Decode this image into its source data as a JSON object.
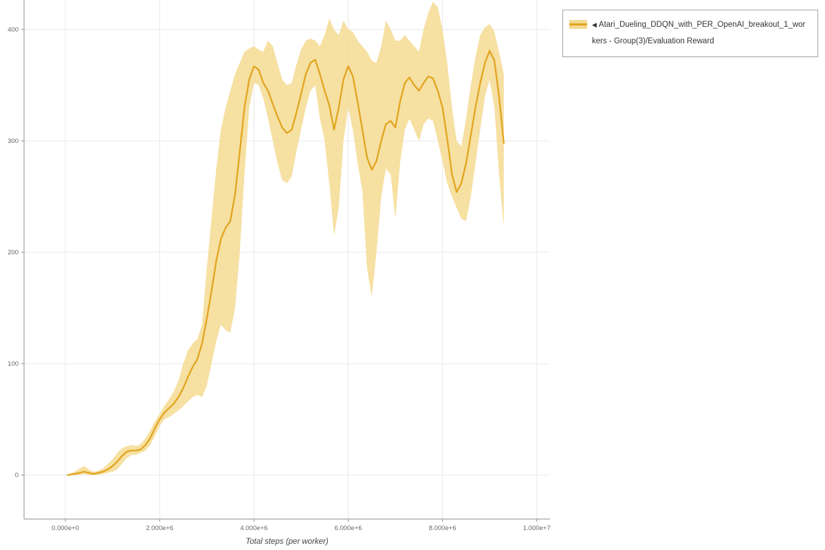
{
  "legend": {
    "marker": "◀",
    "label": "Atari_Dueling_DDQN_with_PER_OpenAI_breakout_1_workers - Group(3)/Evaluation Reward"
  },
  "colors": {
    "line": "#e2a41f",
    "band": "#f4da92",
    "grid": "#e8e8e8",
    "axis": "#8c8c8c",
    "tick_text": "#666666"
  },
  "chart_data": {
    "type": "line",
    "title": "",
    "xlabel": "Total steps (per worker)",
    "ylabel": "",
    "xlim": [
      -875000,
      10280000
    ],
    "ylim": [
      -39.5,
      426.5
    ],
    "grid": true,
    "legend_position": "top-right-outside",
    "x_ticks": [
      {
        "value": 0,
        "label": "0.000e+0"
      },
      {
        "value": 2000000,
        "label": "2.000e+6"
      },
      {
        "value": 4000000,
        "label": "4.000e+6"
      },
      {
        "value": 6000000,
        "label": "6.000e+6"
      },
      {
        "value": 8000000,
        "label": "8.000e+6"
      },
      {
        "value": 10000000,
        "label": "1.000e+7"
      }
    ],
    "y_ticks": [
      {
        "value": 0,
        "label": "0"
      },
      {
        "value": 100,
        "label": "100"
      },
      {
        "value": 200,
        "label": "200"
      },
      {
        "value": 300,
        "label": "300"
      },
      {
        "value": 400,
        "label": "400"
      }
    ],
    "x": [
      50000.0,
      200000.0,
      300000.0,
      400000.0,
      500000.0,
      600000.0,
      700000.0,
      800000.0,
      900000.0,
      1000000.0,
      1100000.0,
      1200000.0,
      1300000.0,
      1400000.0,
      1500000.0,
      1600000.0,
      1700000.0,
      1800000.0,
      1900000.0,
      2000000.0,
      2100000.0,
      2200000.0,
      2300000.0,
      2400000.0,
      2500000.0,
      2600000.0,
      2700000.0,
      2800000.0,
      2900000.0,
      3000000.0,
      3100000.0,
      3200000.0,
      3300000.0,
      3400000.0,
      3500000.0,
      3600000.0,
      3700000.0,
      3800000.0,
      3900000.0,
      4000000.0,
      4100000.0,
      4200000.0,
      4300000.0,
      4400000.0,
      4500000.0,
      4600000.0,
      4700000.0,
      4800000.0,
      4900000.0,
      5000000.0,
      5100000.0,
      5200000.0,
      5300000.0,
      5400000.0,
      5500000.0,
      5600000.0,
      5700000.0,
      5800000.0,
      5900000.0,
      6000000.0,
      6100000.0,
      6200000.0,
      6300000.0,
      6400000.0,
      6500000.0,
      6600000.0,
      6700000.0,
      6800000.0,
      6900000.0,
      7000000.0,
      7100000.0,
      7200000.0,
      7300000.0,
      7400000.0,
      7500000.0,
      7600000.0,
      7700000.0,
      7800000.0,
      7900000.0,
      8000000.0,
      8100000.0,
      8200000.0,
      8300000.0,
      8400000.0,
      8500000.0,
      8600000.0,
      8700000.0,
      8800000.0,
      8900000.0,
      9000000.0,
      9100000.0,
      9200000.0,
      9300000.0
    ],
    "series": [
      {
        "name": "Evaluation Reward (mean)",
        "values": [
          0,
          1,
          2,
          3,
          2,
          1,
          2,
          3,
          5,
          8,
          12,
          17,
          21,
          22,
          22,
          23,
          27,
          33,
          42,
          50,
          56,
          60,
          64,
          70,
          78,
          88,
          97,
          104,
          118,
          140,
          165,
          192,
          212,
          222,
          228,
          252,
          290,
          330,
          355,
          367,
          364,
          352,
          345,
          333,
          322,
          312,
          307,
          310,
          325,
          342,
          360,
          370,
          373,
          360,
          345,
          332,
          310,
          330,
          355,
          367,
          358,
          335,
          310,
          285,
          274,
          282,
          300,
          315,
          318,
          312,
          335,
          352,
          357,
          350,
          345,
          352,
          358,
          356,
          345,
          330,
          302,
          270,
          254,
          262,
          280,
          305,
          330,
          352,
          370,
          381,
          372,
          340,
          298
        ]
      },
      {
        "name": "band lower",
        "values": [
          0,
          0,
          0,
          1,
          0,
          0,
          0,
          1,
          2,
          3,
          5,
          10,
          15,
          18,
          18,
          20,
          22,
          27,
          35,
          44,
          50,
          52,
          55,
          58,
          62,
          66,
          70,
          72,
          70,
          80,
          100,
          120,
          135,
          130,
          128,
          150,
          200,
          270,
          330,
          352,
          350,
          338,
          320,
          300,
          280,
          265,
          262,
          268,
          290,
          310,
          330,
          345,
          350,
          320,
          300,
          262,
          215,
          240,
          300,
          330,
          310,
          280,
          255,
          185,
          160,
          200,
          250,
          275,
          270,
          230,
          280,
          310,
          320,
          310,
          300,
          315,
          320,
          318,
          300,
          282,
          262,
          250,
          240,
          230,
          228,
          250,
          280,
          310,
          340,
          355,
          330,
          270,
          222
        ]
      },
      {
        "name": "band upper",
        "values": [
          1,
          3,
          6,
          8,
          5,
          3,
          4,
          6,
          10,
          14,
          20,
          24,
          26,
          27,
          26,
          28,
          33,
          40,
          48,
          55,
          62,
          68,
          75,
          85,
          100,
          112,
          118,
          122,
          135,
          185,
          230,
          275,
          310,
          330,
          345,
          360,
          370,
          380,
          383,
          385,
          382,
          380,
          390,
          385,
          370,
          355,
          350,
          352,
          368,
          382,
          390,
          392,
          390,
          385,
          395,
          410,
          400,
          395,
          408,
          400,
          398,
          390,
          385,
          380,
          372,
          370,
          385,
          408,
          400,
          390,
          390,
          395,
          390,
          385,
          380,
          400,
          415,
          425,
          420,
          400,
          370,
          330,
          300,
          295,
          320,
          350,
          375,
          395,
          402,
          405,
          398,
          380,
          360
        ]
      }
    ]
  }
}
